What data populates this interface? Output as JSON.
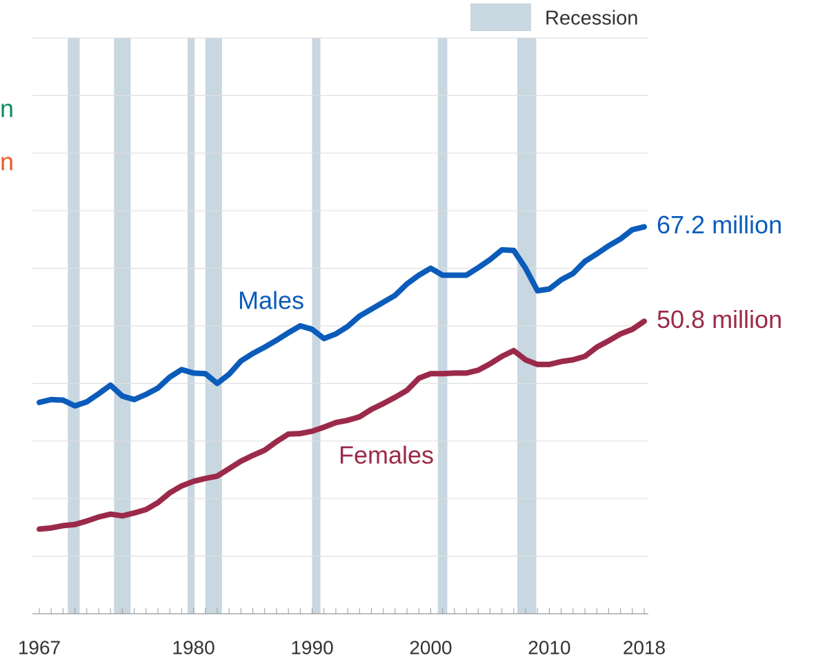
{
  "chart_data": {
    "type": "line",
    "x": [
      1967,
      1968,
      1969,
      1970,
      1971,
      1972,
      1973,
      1974,
      1975,
      1976,
      1977,
      1978,
      1979,
      1980,
      1981,
      1982,
      1983,
      1984,
      1985,
      1986,
      1987,
      1988,
      1989,
      1990,
      1991,
      1992,
      1993,
      1994,
      1995,
      1996,
      1997,
      1998,
      1999,
      2000,
      2001,
      2002,
      2003,
      2004,
      2005,
      2006,
      2007,
      2008,
      2009,
      2010,
      2011,
      2012,
      2013,
      2014,
      2015,
      2016,
      2017,
      2018
    ],
    "series": [
      {
        "name": "Males",
        "color": "#0b5cba",
        "values": [
          36.7,
          37.2,
          37.1,
          36.1,
          36.8,
          38.2,
          39.7,
          37.8,
          37.2,
          38.1,
          39.2,
          41.1,
          42.4,
          41.8,
          41.7,
          40.0,
          41.6,
          43.9,
          45.2,
          46.3,
          47.5,
          48.8,
          50.0,
          49.4,
          47.8,
          48.6,
          49.9,
          51.7,
          52.9,
          54.1,
          55.3,
          57.3,
          58.8,
          60.0,
          58.8,
          58.8,
          58.8,
          60.1,
          61.5,
          63.2,
          63.1,
          60.0,
          56.1,
          56.4,
          58.0,
          59.1,
          61.2,
          62.5,
          63.9,
          65.1,
          66.7,
          67.2
        ],
        "value_labels": [
          null,
          null,
          null,
          null,
          null,
          null,
          null,
          null,
          null,
          null,
          null,
          null,
          null,
          null,
          null,
          null,
          null,
          null,
          null,
          null,
          null,
          null,
          null,
          null,
          null,
          null,
          null,
          null,
          null,
          null,
          null,
          null,
          null,
          null,
          null,
          null,
          null,
          null,
          null,
          null,
          null,
          null,
          null,
          null,
          null,
          null,
          null,
          null,
          null,
          null,
          null,
          "67.2 million"
        ]
      },
      {
        "name": "Females",
        "color": "#9b2a4a",
        "values": [
          14.7,
          14.9,
          15.3,
          15.5,
          16.1,
          16.8,
          17.3,
          17.0,
          17.5,
          18.1,
          19.3,
          21.0,
          22.2,
          23.0,
          23.5,
          23.9,
          25.2,
          26.5,
          27.5,
          28.4,
          29.9,
          31.2,
          31.3,
          31.7,
          32.4,
          33.2,
          33.6,
          34.2,
          35.5,
          36.5,
          37.6,
          38.8,
          40.9,
          41.7,
          41.7,
          41.8,
          41.8,
          42.3,
          43.4,
          44.7,
          45.7,
          44.1,
          43.3,
          43.3,
          43.8,
          44.1,
          44.7,
          46.3,
          47.4,
          48.6,
          49.4,
          50.8
        ],
        "value_labels": [
          null,
          null,
          null,
          null,
          null,
          null,
          null,
          null,
          null,
          null,
          null,
          null,
          null,
          null,
          null,
          null,
          null,
          null,
          null,
          null,
          null,
          null,
          null,
          null,
          null,
          null,
          null,
          null,
          null,
          null,
          null,
          null,
          null,
          null,
          null,
          null,
          null,
          null,
          null,
          null,
          null,
          null,
          null,
          null,
          null,
          null,
          null,
          null,
          null,
          null,
          null,
          "50.8 million"
        ]
      }
    ],
    "xlim": [
      1967,
      2018
    ],
    "xticks": [
      1967,
      1980,
      1990,
      2000,
      2010,
      2018
    ],
    "ylim": [
      0,
      100
    ],
    "yticks": [
      0,
      10,
      20,
      30,
      40,
      50,
      60,
      70,
      80,
      90,
      100
    ],
    "grid": true,
    "recessions": {
      "label": "Recession",
      "color": "#c9d7e1",
      "spans": [
        [
          1969.4,
          1970.4
        ],
        [
          1973.3,
          1974.7
        ],
        [
          1979.5,
          1980.1
        ],
        [
          1981.0,
          1982.4
        ],
        [
          1990.0,
          1990.7
        ],
        [
          2000.6,
          2001.4
        ],
        [
          2007.3,
          2008.9
        ]
      ]
    },
    "annotations": [
      {
        "text": "n",
        "color": "#0a9060"
      },
      {
        "text": "n",
        "color": "#f05a1e"
      }
    ]
  }
}
